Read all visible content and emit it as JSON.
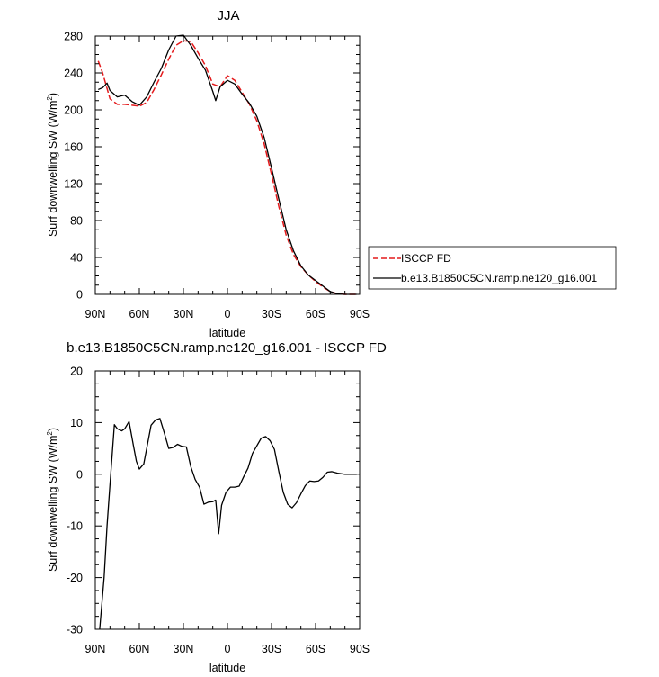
{
  "chart_data": [
    {
      "type": "line",
      "title": "JJA",
      "xlabel": "latitude",
      "ylabel": "Surf downwelling SW (W/m",
      "ylabel_sup": "2",
      "ylabel_end": ")",
      "xlim": [
        90,
        -90
      ],
      "ylim": [
        0,
        280
      ],
      "xticks": [
        90,
        60,
        30,
        0,
        -30,
        -60,
        -90
      ],
      "xtick_labels": [
        "90N",
        "60N",
        "30N",
        "0",
        "30S",
        "60S",
        "90S"
      ],
      "yticks": [
        0,
        40,
        80,
        120,
        160,
        200,
        240,
        280
      ],
      "ytick_labels": [
        "0",
        "40",
        "80",
        "120",
        "160",
        "200",
        "240",
        "280"
      ],
      "grid": false,
      "legend": "outside-right",
      "series": [
        {
          "name": "ISCCP FD",
          "style": "dashed",
          "color": "#e41a1c",
          "x": [
            88,
            85,
            80,
            75,
            70,
            65,
            60,
            55,
            50,
            45,
            40,
            35,
            30,
            25,
            20,
            15,
            10,
            5,
            0,
            -5,
            -10,
            -15,
            -20,
            -25,
            -30,
            -35,
            -40,
            -45,
            -50,
            -55,
            -60,
            -65,
            -70,
            -75,
            -80,
            -85,
            -88
          ],
          "y": [
            253,
            240,
            212,
            206,
            206,
            205,
            204,
            208,
            222,
            238,
            255,
            270,
            275,
            274,
            262,
            248,
            228,
            225,
            237,
            232,
            219,
            206,
            188,
            163,
            130,
            95,
            64,
            43,
            30,
            21,
            14,
            8,
            3,
            0.5,
            0,
            0,
            0
          ]
        },
        {
          "name": "b.e13.B1850C5CN.ramp.ne120_g16.001",
          "style": "solid",
          "color": "#000000",
          "x": [
            88,
            85,
            82,
            80,
            75,
            70,
            65,
            60,
            55,
            50,
            45,
            40,
            35,
            30,
            25,
            20,
            15,
            10,
            8,
            5,
            0,
            -5,
            -10,
            -15,
            -20,
            -25,
            -30,
            -35,
            -40,
            -45,
            -50,
            -55,
            -60,
            -65,
            -70,
            -75,
            -80,
            -85,
            -88
          ],
          "y": [
            222,
            224,
            229,
            221,
            214,
            216,
            209,
            205,
            214,
            230,
            245,
            265,
            280,
            281,
            270,
            256,
            243,
            220,
            210,
            225,
            232,
            228,
            217,
            207,
            193,
            170,
            137,
            103,
            70,
            47,
            31,
            21,
            15,
            9,
            3,
            0.5,
            0,
            0,
            0
          ]
        }
      ]
    },
    {
      "type": "line",
      "title": "b.e13.B1850C5CN.ramp.ne120_g16.001 - ISCCP FD",
      "xlabel": "latitude",
      "ylabel": "Surf downwelling SW (W/m",
      "ylabel_sup": "2",
      "ylabel_end": ")",
      "xlim": [
        90,
        -90
      ],
      "ylim": [
        -30,
        20
      ],
      "xticks": [
        90,
        60,
        30,
        0,
        -30,
        -60,
        -90
      ],
      "xtick_labels": [
        "90N",
        "60N",
        "30N",
        "0",
        "30S",
        "60S",
        "90S"
      ],
      "yticks": [
        -30,
        -20,
        -10,
        0,
        10,
        20
      ],
      "ytick_labels": [
        "-30",
        "-20",
        "-10",
        "0",
        "10",
        "20"
      ],
      "grid": false,
      "series": [
        {
          "style": "solid",
          "color": "#000000",
          "x": [
            87,
            84,
            82,
            80,
            77,
            75,
            72,
            70,
            67,
            64,
            62,
            60,
            57,
            55,
            52,
            49,
            46,
            43,
            40,
            37,
            34,
            31,
            28,
            25,
            22,
            19,
            16,
            13,
            10,
            8,
            6,
            4,
            1,
            -2,
            -5,
            -8,
            -11,
            -14,
            -17,
            -20,
            -23,
            -26,
            -29,
            -32,
            -35,
            -38,
            -41,
            -44,
            -47,
            -50,
            -53,
            -56,
            -59,
            -62,
            -65,
            -68,
            -71,
            -75,
            -80,
            -85,
            -88
          ],
          "y": [
            -30,
            -20,
            -10,
            -2,
            9.6,
            8.8,
            8.4,
            8.8,
            10.2,
            5.5,
            2.5,
            1.0,
            2.0,
            5.0,
            9.5,
            10.5,
            10.8,
            8.0,
            5.0,
            5.2,
            5.8,
            5.4,
            5.3,
            1.5,
            -1.0,
            -2.5,
            -5.8,
            -5.4,
            -5.3,
            -5.0,
            -11.5,
            -6.0,
            -3.5,
            -2.5,
            -2.5,
            -2.3,
            -0.5,
            1.2,
            4.0,
            5.5,
            7.0,
            7.3,
            6.5,
            4.8,
            0.5,
            -3.5,
            -5.8,
            -6.5,
            -5.5,
            -3.8,
            -2.2,
            -1.3,
            -1.4,
            -1.3,
            -0.6,
            0.4,
            0.5,
            0.2,
            0,
            0,
            0
          ]
        }
      ]
    }
  ]
}
